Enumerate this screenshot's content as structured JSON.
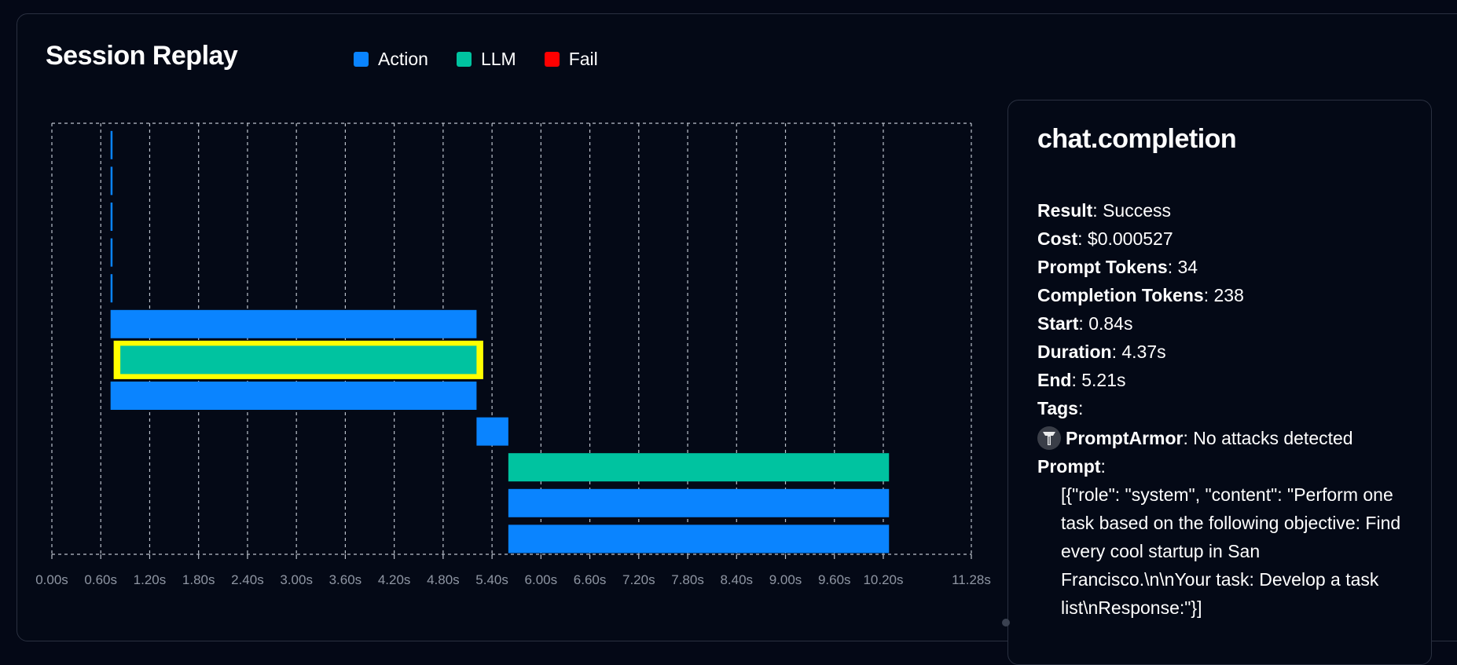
{
  "header": {
    "title": "Session Replay"
  },
  "legend": [
    {
      "label": "Action",
      "color": "#0a84ff"
    },
    {
      "label": "LLM",
      "color": "#00c3a0"
    },
    {
      "label": "Fail",
      "color": "#ff0000"
    }
  ],
  "chart_data": {
    "type": "gantt",
    "title": "Session Replay",
    "xlabel": "",
    "ylabel": "",
    "xlim": [
      0.0,
      11.28
    ],
    "grid": true,
    "legend_placement": "top",
    "tick_labels": [
      "0.00s",
      "0.60s",
      "1.20s",
      "1.80s",
      "2.40s",
      "3.00s",
      "3.60s",
      "4.20s",
      "4.80s",
      "5.40s",
      "6.00s",
      "6.60s",
      "7.20s",
      "7.80s",
      "8.40s",
      "9.00s",
      "9.60s",
      "10.20s",
      "11.28s"
    ],
    "tick_values": [
      0.0,
      0.6,
      1.2,
      1.8,
      2.4,
      3.0,
      3.6,
      4.2,
      4.8,
      5.4,
      6.0,
      6.6,
      7.2,
      7.8,
      8.4,
      9.0,
      9.6,
      10.2,
      11.28
    ],
    "series": [
      {
        "name": "Action",
        "color": "#0a84ff"
      },
      {
        "name": "LLM",
        "color": "#00c3a0"
      },
      {
        "name": "Fail",
        "color": "#ff0000"
      }
    ],
    "events": [
      {
        "type": "Action",
        "start": 0.72,
        "end": 0.74
      },
      {
        "type": "Action",
        "start": 0.72,
        "end": 0.74
      },
      {
        "type": "Action",
        "start": 0.72,
        "end": 0.74
      },
      {
        "type": "Action",
        "start": 0.72,
        "end": 0.74
      },
      {
        "type": "Action",
        "start": 0.72,
        "end": 0.74
      },
      {
        "type": "Action",
        "start": 0.72,
        "end": 5.21
      },
      {
        "type": "LLM",
        "start": 0.84,
        "end": 5.21,
        "selected": true,
        "highlight_color": "#ffff00"
      },
      {
        "type": "Action",
        "start": 0.72,
        "end": 5.21
      },
      {
        "type": "Action",
        "start": 5.21,
        "end": 5.6
      },
      {
        "type": "LLM",
        "start": 5.6,
        "end": 10.27
      },
      {
        "type": "Action",
        "start": 5.6,
        "end": 10.27
      },
      {
        "type": "Action",
        "start": 5.6,
        "end": 10.27
      }
    ]
  },
  "details": {
    "title": "chat.completion",
    "fields": [
      {
        "key": "Result",
        "value": "Success"
      },
      {
        "key": "Cost",
        "value": "$0.000527"
      },
      {
        "key": "Prompt Tokens",
        "value": "34"
      },
      {
        "key": "Completion Tokens",
        "value": "238"
      },
      {
        "key": "Start",
        "value": "0.84s"
      },
      {
        "key": "Duration",
        "value": "4.37s"
      },
      {
        "key": "End",
        "value": "5.21s"
      }
    ],
    "tags_label": "Tags",
    "tag": {
      "name": "PromptArmor",
      "value": "No attacks detected",
      "icon": "promptarmor-icon"
    },
    "prompt_label": "Prompt",
    "prompt": "[{\"role\": \"system\", \"content\": \"Perform one task based on the following objective: Find every cool startup in San Francisco.\\n\\nYour task: Develop a task list\\nResponse:\"}]"
  }
}
